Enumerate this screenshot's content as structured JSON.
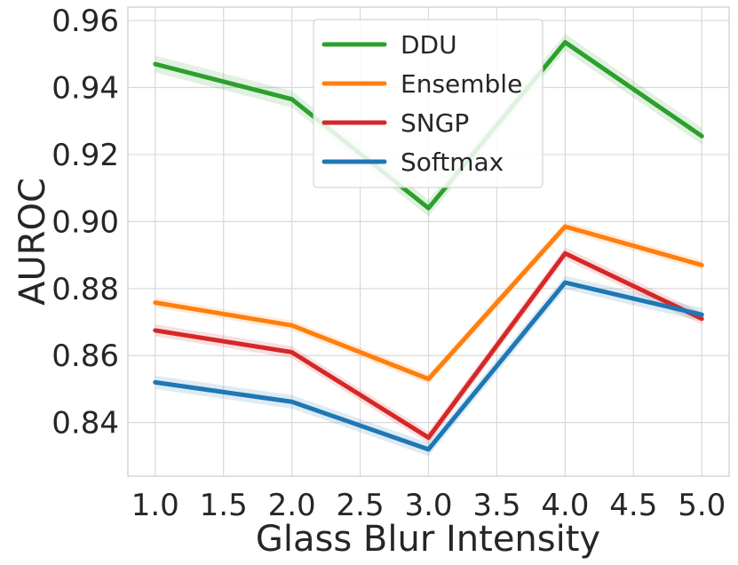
{
  "chart_data": {
    "type": "line",
    "title": "",
    "xlabel": "Glass Blur Intensity",
    "ylabel": "AUROC",
    "x": [
      1.0,
      2.0,
      3.0,
      4.0,
      5.0
    ],
    "xticks": [
      1.0,
      1.5,
      2.0,
      2.5,
      3.0,
      3.5,
      4.0,
      4.5,
      5.0
    ],
    "xtick_labels": [
      "1.0",
      "1.5",
      "2.0",
      "2.5",
      "3.0",
      "3.5",
      "4.0",
      "4.5",
      "5.0"
    ],
    "yticks": [
      0.84,
      0.86,
      0.88,
      0.9,
      0.92,
      0.94,
      0.96
    ],
    "ytick_labels": [
      "0.84",
      "0.86",
      "0.88",
      "0.90",
      "0.92",
      "0.94",
      "0.96"
    ],
    "xlim": [
      0.8,
      5.2
    ],
    "ylim": [
      0.824,
      0.964
    ],
    "grid": true,
    "legend_position": "top-center",
    "series": [
      {
        "name": "DDU",
        "color": "#2ca02c",
        "values": [
          0.947,
          0.9365,
          0.904,
          0.9535,
          0.9255
        ],
        "band": 0.0025
      },
      {
        "name": "Ensemble",
        "color": "#ff7f0e",
        "values": [
          0.8758,
          0.869,
          0.853,
          0.8985,
          0.887
        ],
        "band": 0.0015
      },
      {
        "name": "SNGP",
        "color": "#d62728",
        "values": [
          0.8675,
          0.861,
          0.8355,
          0.8905,
          0.871
        ],
        "band": 0.0018
      },
      {
        "name": "Softmax",
        "color": "#1f77b4",
        "values": [
          0.852,
          0.8462,
          0.832,
          0.8818,
          0.8722
        ],
        "band": 0.002
      }
    ]
  }
}
